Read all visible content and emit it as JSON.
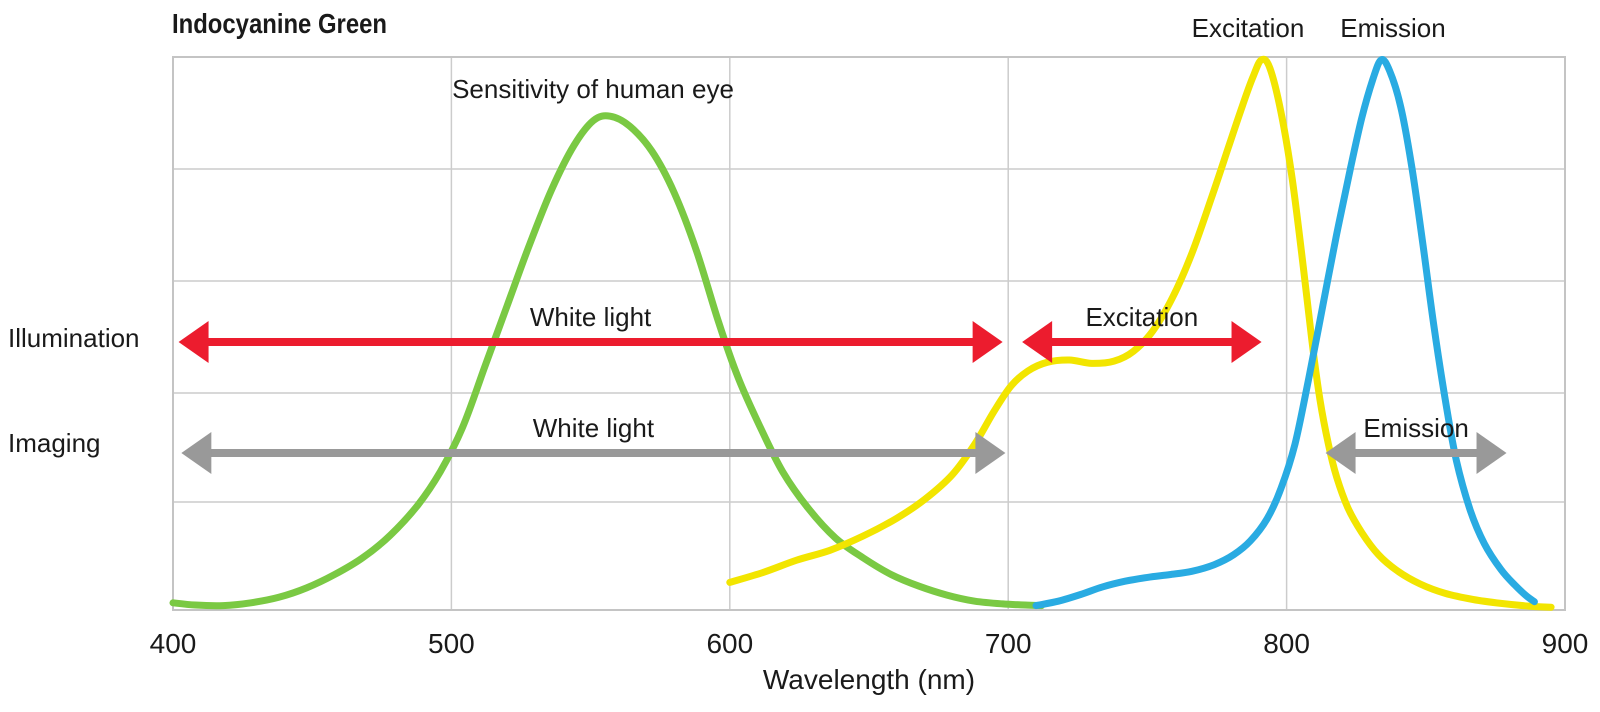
{
  "title": "Indocyanine Green",
  "rows": {
    "illumination": "Illumination",
    "imaging": "Imaging"
  },
  "colors": {
    "green": "#7AC943",
    "yellow": "#F2E500",
    "blue": "#29ABE2",
    "red": "#EC1C2E",
    "gray": "#999999",
    "grid": "#cccccc",
    "border": "#c4c4c4",
    "text": "#1a1a1a"
  },
  "chart_data": {
    "type": "line",
    "title": "Indocyanine Green",
    "xlabel": "Wavelength (nm)",
    "xlim": [
      400,
      900
    ],
    "ylim": [
      0,
      1
    ],
    "x_ticks": [
      400,
      500,
      600,
      700,
      800,
      900
    ],
    "grid": true,
    "legend_position": "labels-inline",
    "series": [
      {
        "name": "Sensitivity of human eye",
        "color": "#7AC943",
        "points": [
          [
            400,
            0.013
          ],
          [
            408,
            0.009
          ],
          [
            418,
            0.008
          ],
          [
            428,
            0.013
          ],
          [
            438,
            0.023
          ],
          [
            448,
            0.04
          ],
          [
            458,
            0.064
          ],
          [
            468,
            0.094
          ],
          [
            478,
            0.135
          ],
          [
            488,
            0.19
          ],
          [
            496,
            0.25
          ],
          [
            504,
            0.33
          ],
          [
            512,
            0.44
          ],
          [
            520,
            0.55
          ],
          [
            528,
            0.66
          ],
          [
            536,
            0.76
          ],
          [
            544,
            0.84
          ],
          [
            551,
            0.885
          ],
          [
            557,
            0.893
          ],
          [
            564,
            0.875
          ],
          [
            572,
            0.83
          ],
          [
            580,
            0.755
          ],
          [
            588,
            0.65
          ],
          [
            596,
            0.52
          ],
          [
            603,
            0.42
          ],
          [
            611,
            0.33
          ],
          [
            619,
            0.25
          ],
          [
            628,
            0.185
          ],
          [
            638,
            0.13
          ],
          [
            648,
            0.094
          ],
          [
            658,
            0.064
          ],
          [
            668,
            0.043
          ],
          [
            678,
            0.027
          ],
          [
            688,
            0.016
          ],
          [
            698,
            0.011
          ],
          [
            706,
            0.009
          ],
          [
            712,
            0.008
          ]
        ]
      },
      {
        "name": "Excitation",
        "color": "#F2E500",
        "points": [
          [
            600,
            0.05
          ],
          [
            612,
            0.068
          ],
          [
            624,
            0.09
          ],
          [
            636,
            0.108
          ],
          [
            648,
            0.134
          ],
          [
            660,
            0.166
          ],
          [
            670,
            0.2
          ],
          [
            680,
            0.245
          ],
          [
            688,
            0.3
          ],
          [
            695,
            0.36
          ],
          [
            701,
            0.405
          ],
          [
            707,
            0.432
          ],
          [
            714,
            0.448
          ],
          [
            722,
            0.452
          ],
          [
            730,
            0.446
          ],
          [
            738,
            0.45
          ],
          [
            745,
            0.468
          ],
          [
            752,
            0.505
          ],
          [
            759,
            0.565
          ],
          [
            766,
            0.645
          ],
          [
            773,
            0.745
          ],
          [
            779,
            0.835
          ],
          [
            784,
            0.91
          ],
          [
            788,
            0.965
          ],
          [
            791,
            0.995
          ],
          [
            794,
            0.98
          ],
          [
            798,
            0.9
          ],
          [
            802,
            0.78
          ],
          [
            806,
            0.62
          ],
          [
            809,
            0.49
          ],
          [
            812,
            0.38
          ],
          [
            815,
            0.3
          ],
          [
            818,
            0.24
          ],
          [
            822,
            0.185
          ],
          [
            827,
            0.14
          ],
          [
            833,
            0.1
          ],
          [
            840,
            0.07
          ],
          [
            848,
            0.047
          ],
          [
            857,
            0.03
          ],
          [
            867,
            0.019
          ],
          [
            877,
            0.012
          ],
          [
            887,
            0.007
          ],
          [
            895,
            0.005
          ]
        ]
      },
      {
        "name": "Emission",
        "color": "#29ABE2",
        "points": [
          [
            710,
            0.008
          ],
          [
            718,
            0.016
          ],
          [
            726,
            0.028
          ],
          [
            734,
            0.042
          ],
          [
            742,
            0.052
          ],
          [
            750,
            0.059
          ],
          [
            758,
            0.064
          ],
          [
            766,
            0.07
          ],
          [
            774,
            0.082
          ],
          [
            781,
            0.1
          ],
          [
            787,
            0.125
          ],
          [
            793,
            0.165
          ],
          [
            798,
            0.22
          ],
          [
            803,
            0.3
          ],
          [
            808,
            0.42
          ],
          [
            813,
            0.55
          ],
          [
            818,
            0.68
          ],
          [
            823,
            0.8
          ],
          [
            827,
            0.89
          ],
          [
            831,
            0.96
          ],
          [
            834,
            0.995
          ],
          [
            837,
            0.975
          ],
          [
            841,
            0.91
          ],
          [
            845,
            0.8
          ],
          [
            849,
            0.66
          ],
          [
            853,
            0.51
          ],
          [
            857,
            0.38
          ],
          [
            861,
            0.27
          ],
          [
            866,
            0.18
          ],
          [
            871,
            0.12
          ],
          [
            877,
            0.073
          ],
          [
            882,
            0.045
          ],
          [
            886,
            0.026
          ],
          [
            889,
            0.015
          ]
        ]
      }
    ],
    "arrows": [
      {
        "row": "illumination",
        "label": "White light",
        "color": "#EC1C2E",
        "from_nm": 402,
        "to_nm": 698
      },
      {
        "row": "illumination",
        "label": "Excitation",
        "color": "#EC1C2E",
        "from_nm": 705,
        "to_nm": 791
      },
      {
        "row": "imaging",
        "label": "White light",
        "color": "#999999",
        "from_nm": 403,
        "to_nm": 699
      },
      {
        "row": "imaging",
        "label": "Emission",
        "color": "#999999",
        "from_nm": 814,
        "to_nm": 879
      }
    ]
  }
}
